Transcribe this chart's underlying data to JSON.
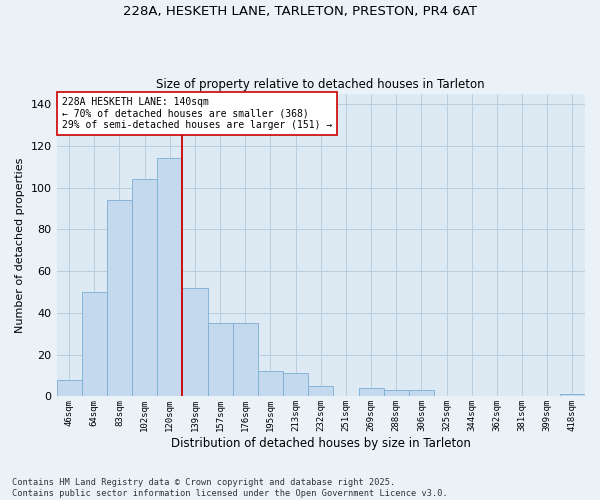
{
  "title1": "228A, HESKETH LANE, TARLETON, PRESTON, PR4 6AT",
  "title2": "Size of property relative to detached houses in Tarleton",
  "xlabel": "Distribution of detached houses by size in Tarleton",
  "ylabel": "Number of detached properties",
  "categories": [
    "46sqm",
    "64sqm",
    "83sqm",
    "102sqm",
    "120sqm",
    "139sqm",
    "157sqm",
    "176sqm",
    "195sqm",
    "213sqm",
    "232sqm",
    "251sqm",
    "269sqm",
    "288sqm",
    "306sqm",
    "325sqm",
    "344sqm",
    "362sqm",
    "381sqm",
    "399sqm",
    "418sqm"
  ],
  "values": [
    8,
    50,
    94,
    104,
    114,
    52,
    35,
    35,
    12,
    11,
    5,
    0,
    4,
    3,
    3,
    0,
    0,
    0,
    0,
    0,
    1
  ],
  "bar_color": "#c5d9ee",
  "bar_edge_color": "#7badd4",
  "vline_x": 4.5,
  "vline_color": "#cc0000",
  "annotation_text": "228A HESKETH LANE: 140sqm\n← 70% of detached houses are smaller (368)\n29% of semi-detached houses are larger (151) →",
  "annotation_box_color": "#ffffff",
  "annotation_box_edge": "#cc0000",
  "ylim": [
    0,
    145
  ],
  "yticks": [
    0,
    20,
    40,
    60,
    80,
    100,
    120,
    140
  ],
  "grid_color": "#b8cfe0",
  "bg_color": "#ddeaf4",
  "fig_color": "#eaf2f8",
  "footer": "Contains HM Land Registry data © Crown copyright and database right 2025.\nContains public sector information licensed under the Open Government Licence v3.0."
}
